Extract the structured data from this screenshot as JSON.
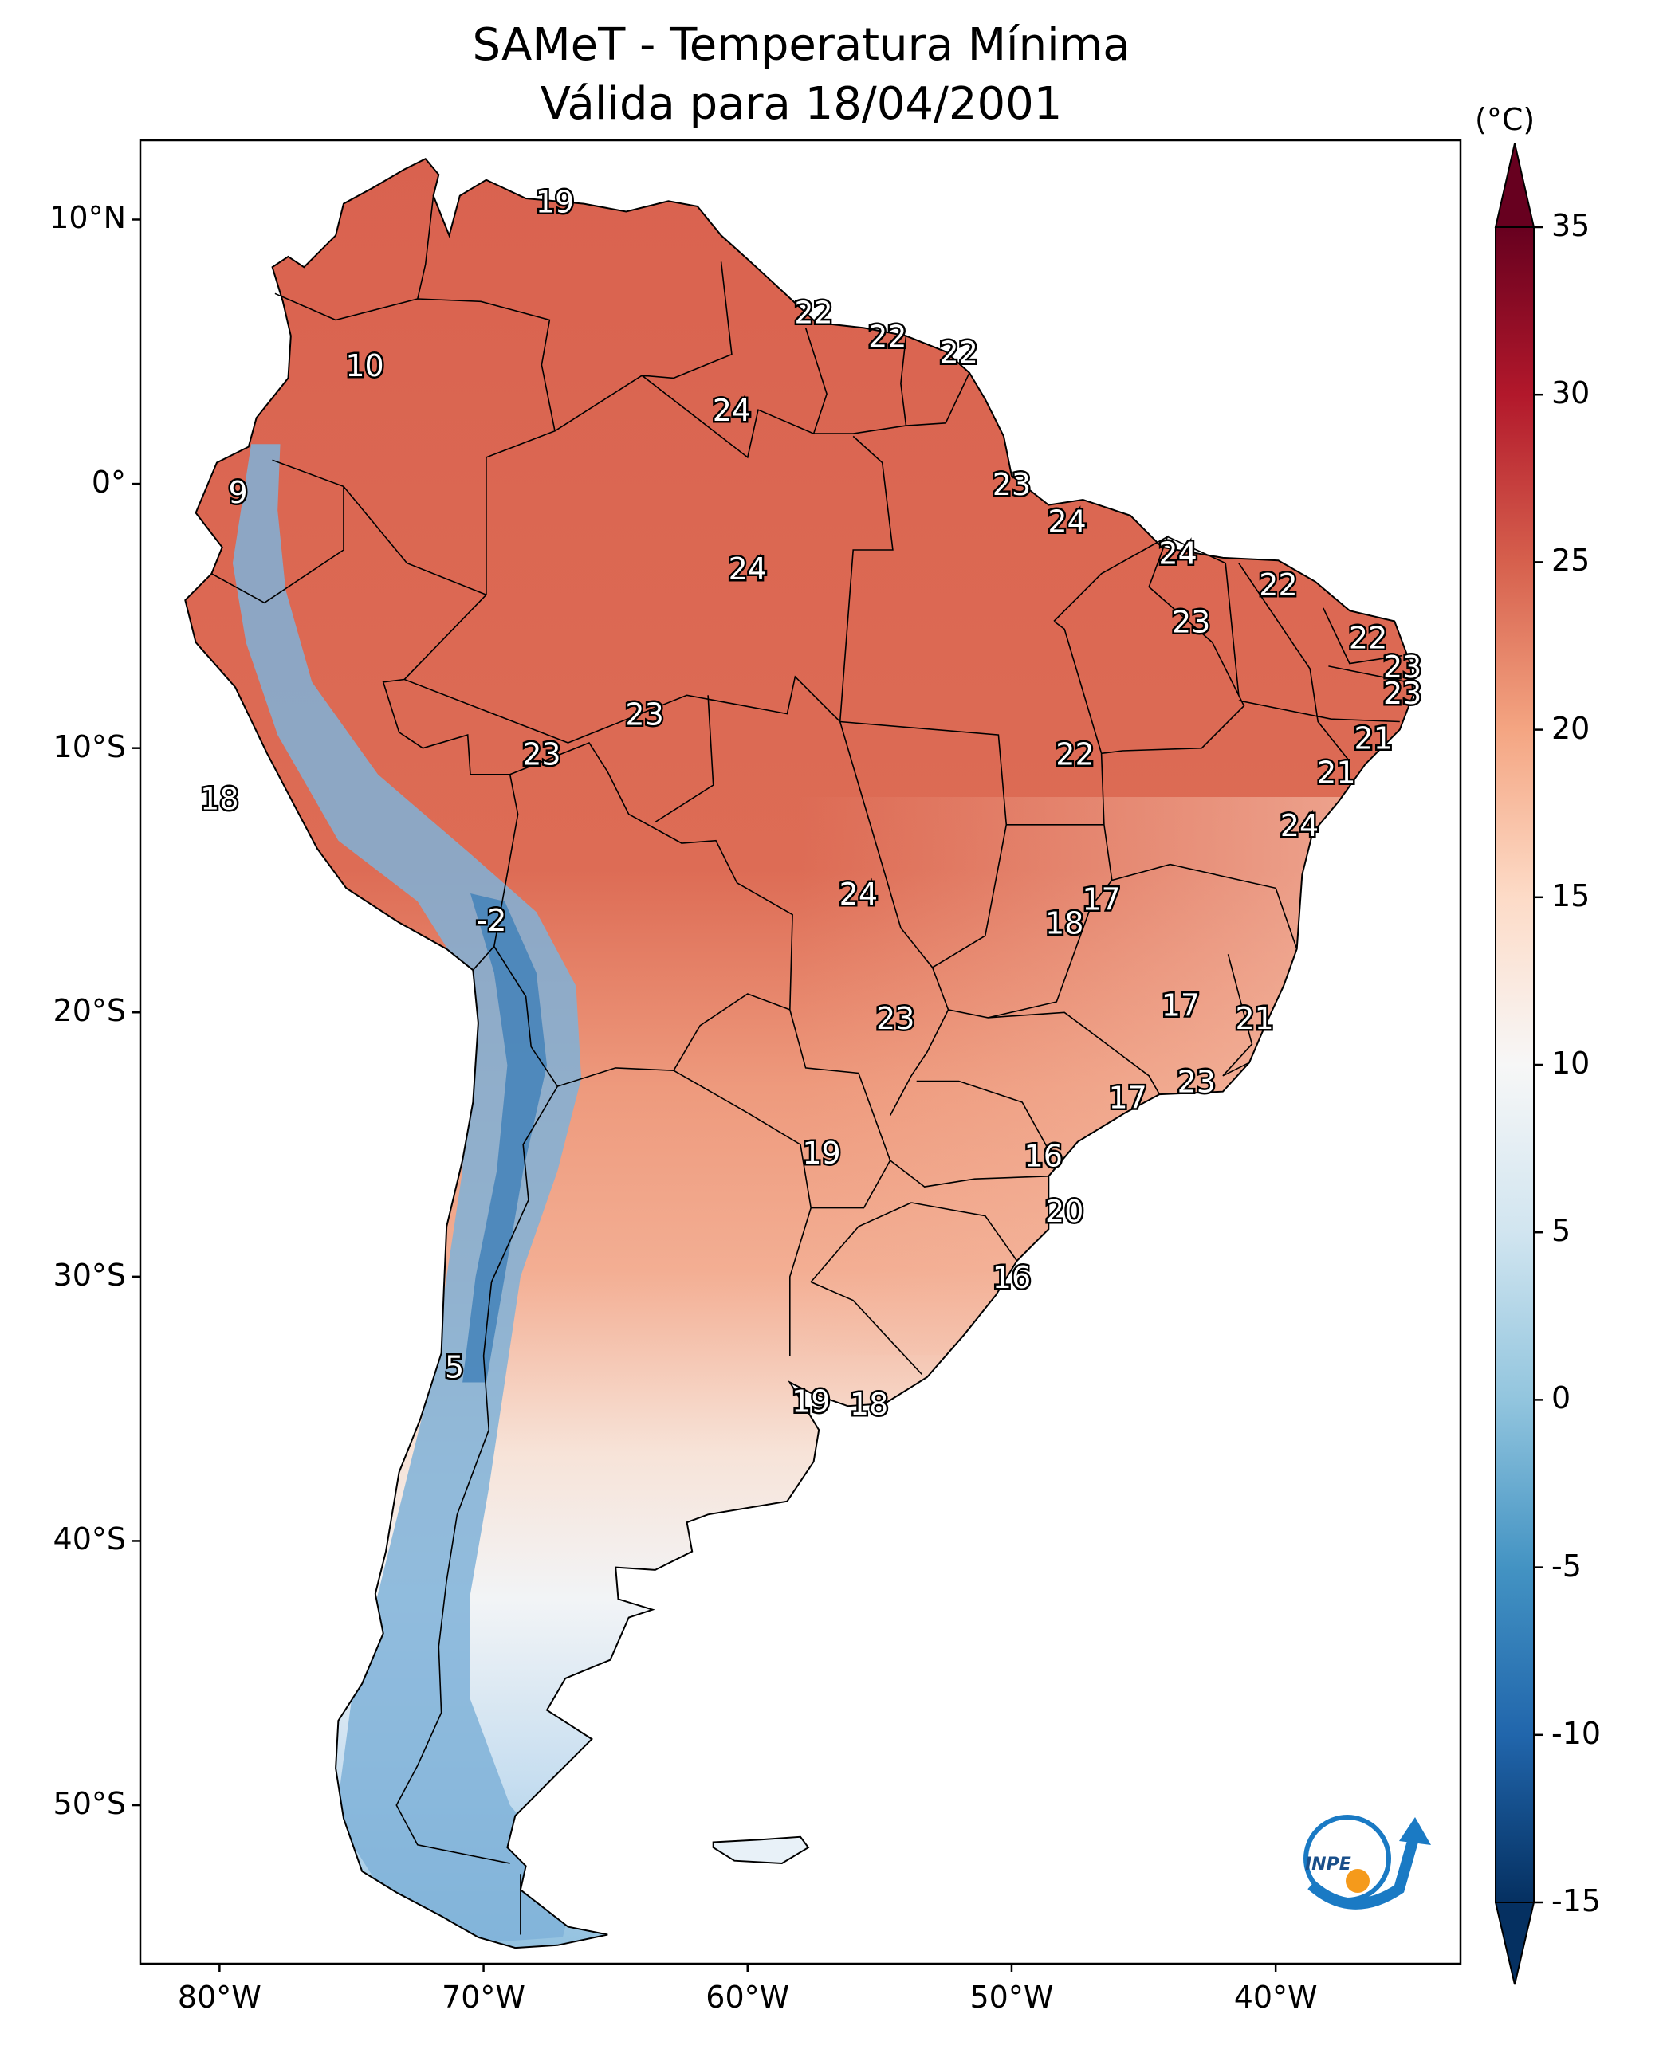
{
  "title": {
    "line1": "SAMeT - Temperatura Mínima",
    "line2": "Válida para 18/04/2001"
  },
  "map": {
    "lon_range": [
      -83,
      -33
    ],
    "lat_range": [
      -56,
      13
    ],
    "lat_ticks": [
      {
        "lat": 10,
        "label": "10°N"
      },
      {
        "lat": 0,
        "label": "0°"
      },
      {
        "lat": -10,
        "label": "10°S"
      },
      {
        "lat": -20,
        "label": "20°S"
      },
      {
        "lat": -30,
        "label": "30°S"
      },
      {
        "lat": -40,
        "label": "40°S"
      },
      {
        "lat": -50,
        "label": "50°S"
      }
    ],
    "lon_ticks": [
      {
        "lon": -80,
        "label": "80°W"
      },
      {
        "lon": -70,
        "label": "70°W"
      },
      {
        "lon": -60,
        "label": "60°W"
      },
      {
        "lon": -50,
        "label": "50°W"
      },
      {
        "lon": -40,
        "label": "40°W"
      }
    ],
    "labels": [
      {
        "lon": -67.3,
        "lat": 10.7,
        "text": "19"
      },
      {
        "lon": -74.5,
        "lat": 4.5,
        "text": "10"
      },
      {
        "lon": -79.3,
        "lat": -0.3,
        "text": "9"
      },
      {
        "lon": -57.5,
        "lat": 6.5,
        "text": "22"
      },
      {
        "lon": -54.7,
        "lat": 5.6,
        "text": "22"
      },
      {
        "lon": -52.0,
        "lat": 5.0,
        "text": "22"
      },
      {
        "lon": -60.6,
        "lat": 2.8,
        "text": "24"
      },
      {
        "lon": -50.0,
        "lat": 0.0,
        "text": "23"
      },
      {
        "lon": -60.0,
        "lat": -3.2,
        "text": "24"
      },
      {
        "lon": -47.9,
        "lat": -1.4,
        "text": "24"
      },
      {
        "lon": -43.7,
        "lat": -2.6,
        "text": "24"
      },
      {
        "lon": -39.9,
        "lat": -3.8,
        "text": "22"
      },
      {
        "lon": -43.2,
        "lat": -5.2,
        "text": "23"
      },
      {
        "lon": -36.5,
        "lat": -5.8,
        "text": "22"
      },
      {
        "lon": -35.2,
        "lat": -6.9,
        "text": "23"
      },
      {
        "lon": -35.2,
        "lat": -7.9,
        "text": "23"
      },
      {
        "lon": -36.3,
        "lat": -9.6,
        "text": "21"
      },
      {
        "lon": -37.7,
        "lat": -10.9,
        "text": "21"
      },
      {
        "lon": -39.1,
        "lat": -12.9,
        "text": "24"
      },
      {
        "lon": -47.6,
        "lat": -10.2,
        "text": "22"
      },
      {
        "lon": -67.8,
        "lat": -10.2,
        "text": "23"
      },
      {
        "lon": -63.9,
        "lat": -8.7,
        "text": "23"
      },
      {
        "lon": -80.0,
        "lat": -11.9,
        "text": "18"
      },
      {
        "lon": -69.7,
        "lat": -16.5,
        "text": "-2"
      },
      {
        "lon": -55.8,
        "lat": -15.5,
        "text": "24"
      },
      {
        "lon": -46.6,
        "lat": -15.7,
        "text": "17"
      },
      {
        "lon": -48.0,
        "lat": -16.6,
        "text": "18"
      },
      {
        "lon": -43.6,
        "lat": -19.7,
        "text": "17"
      },
      {
        "lon": -40.8,
        "lat": -20.2,
        "text": "21"
      },
      {
        "lon": -54.4,
        "lat": -20.2,
        "text": "23"
      },
      {
        "lon": -43.0,
        "lat": -22.6,
        "text": "23"
      },
      {
        "lon": -45.6,
        "lat": -23.2,
        "text": "17"
      },
      {
        "lon": -57.2,
        "lat": -25.3,
        "text": "19"
      },
      {
        "lon": -48.8,
        "lat": -25.4,
        "text": "16"
      },
      {
        "lon": -48.0,
        "lat": -27.5,
        "text": "20"
      },
      {
        "lon": -50.0,
        "lat": -30.0,
        "text": "16"
      },
      {
        "lon": -71.1,
        "lat": -33.4,
        "text": "5"
      },
      {
        "lon": -57.6,
        "lat": -34.7,
        "text": "19"
      },
      {
        "lon": -55.4,
        "lat": -34.8,
        "text": "18"
      }
    ]
  },
  "colorbar": {
    "unit": "(°C)",
    "vmin": -15,
    "vmax": 35,
    "ticks": [
      "35",
      "30",
      "25",
      "20",
      "15",
      "10",
      "5",
      "0",
      "-5",
      "-10",
      "-15"
    ],
    "colors": [
      "#053061",
      "#2166ac",
      "#4393c3",
      "#92c5de",
      "#d1e5f0",
      "#f7f7f7",
      "#fddbc7",
      "#f4a582",
      "#d6604d",
      "#b2182b",
      "#67001f"
    ]
  },
  "logo": {
    "text": "INPE"
  }
}
